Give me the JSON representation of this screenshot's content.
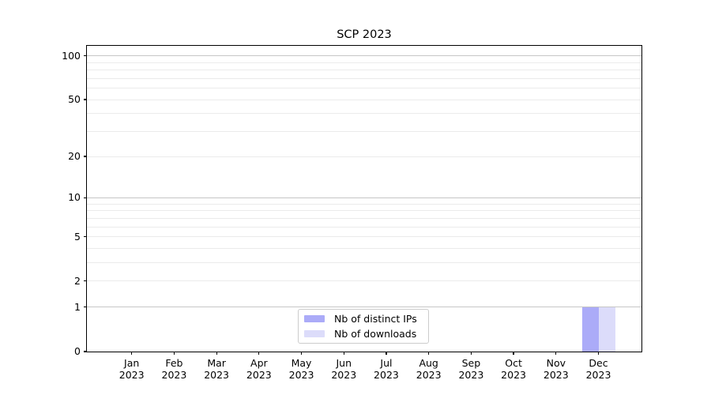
{
  "chart_data": {
    "type": "bar",
    "title": "SCP 2023",
    "x_tick_months": [
      "Jan",
      "Feb",
      "Mar",
      "Apr",
      "May",
      "Jun",
      "Jul",
      "Aug",
      "Sep",
      "Oct",
      "Nov",
      "Dec"
    ],
    "x_tick_year": "2023",
    "y_ticks": [
      0,
      1,
      2,
      5,
      10,
      20,
      50,
      100
    ],
    "y_gridlines_major": [
      1,
      10,
      100
    ],
    "y_gridlines_minor": [
      2,
      3,
      4,
      5,
      6,
      7,
      8,
      9,
      20,
      30,
      40,
      50,
      60,
      70,
      80,
      90
    ],
    "scale": "log10(1+y)",
    "ylim": [
      0,
      116
    ],
    "categories": [
      "Jan 2023",
      "Feb 2023",
      "Mar 2023",
      "Apr 2023",
      "May 2023",
      "Jun 2023",
      "Jul 2023",
      "Aug 2023",
      "Sep 2023",
      "Oct 2023",
      "Nov 2023",
      "Dec 2023"
    ],
    "series": [
      {
        "name": "Nb of distinct IPs",
        "color": "#ababf8",
        "values": [
          0,
          0,
          0,
          0,
          0,
          0,
          0,
          0,
          0,
          0,
          0,
          1
        ]
      },
      {
        "name": "Nb of downloads",
        "color": "#dcdcfa",
        "values": [
          0,
          0,
          0,
          0,
          0,
          0,
          0,
          0,
          0,
          0,
          0,
          1
        ]
      }
    ],
    "legend": {
      "position": "lower center"
    },
    "colors": {
      "grid_major": "#c6c6c6",
      "grid_minor": "#ebebeb",
      "axis": "#000000",
      "background": "#ffffff"
    }
  }
}
